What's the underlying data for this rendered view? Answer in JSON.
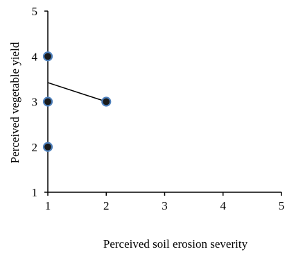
{
  "chart_data": {
    "type": "scatter",
    "title": "",
    "xlabel": "Perceived soil erosion severity",
    "ylabel": "Perceived vegetable yield",
    "xlim": [
      1,
      5
    ],
    "ylim": [
      1,
      5
    ],
    "xticks": [
      1,
      2,
      3,
      4,
      5
    ],
    "yticks": [
      1,
      2,
      3,
      4,
      5
    ],
    "grid": false,
    "legend": "none",
    "series": [
      {
        "points": [
          {
            "x": 1,
            "y": 4
          },
          {
            "x": 1,
            "y": 3
          },
          {
            "x": 1,
            "y": 2
          },
          {
            "x": 2,
            "y": 3
          }
        ],
        "marker_fill": "#1a1a1a",
        "marker_edge": "#4f81bd"
      }
    ],
    "trendline": {
      "x": [
        1,
        2
      ],
      "y": [
        3.42,
        3.0
      ],
      "color": "#000000"
    }
  }
}
